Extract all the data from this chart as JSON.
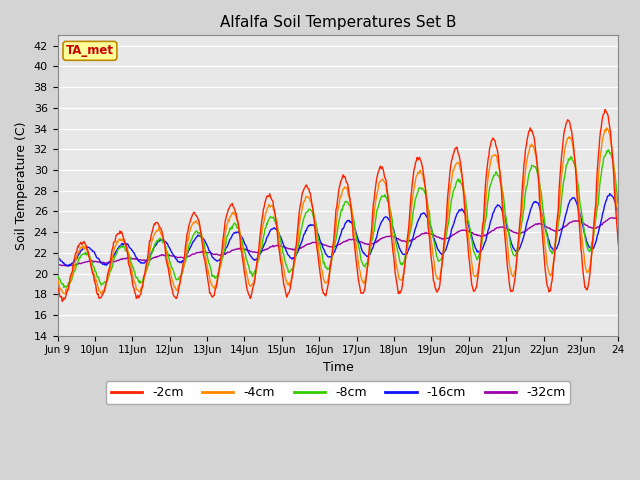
{
  "title": "Alfalfa Soil Temperatures Set B",
  "xlabel": "Time",
  "ylabel": "Soil Temperature (C)",
  "ylim": [
    14,
    43
  ],
  "yticks": [
    14,
    16,
    18,
    20,
    22,
    24,
    26,
    28,
    30,
    32,
    34,
    36,
    38,
    40,
    42
  ],
  "xlim": [
    0,
    15
  ],
  "figsize": [
    6.4,
    4.8
  ],
  "dpi": 100,
  "background_color": "#d4d4d4",
  "plot_bg_color": "#e8e8e8",
  "series_colors": {
    "-2cm": "#ff2200",
    "-4cm": "#ff8800",
    "-8cm": "#33cc00",
    "-16cm": "#1111ff",
    "-32cm": "#9900aa"
  },
  "legend_label": "TA_met",
  "legend_box_color": "#ffff99",
  "legend_text_color": "#cc0000",
  "n_days": 15,
  "start_day": 9,
  "tick_labels": [
    "Jun 9",
    "10Jun",
    "11Jun",
    "12Jun",
    "13Jun",
    "14Jun",
    "15Jun",
    "16Jun",
    "17Jun",
    "18Jun",
    "19Jun",
    "20Jun",
    "21Jun",
    "22Jun",
    "23Jun",
    "24"
  ],
  "n_points_per_day": 48
}
